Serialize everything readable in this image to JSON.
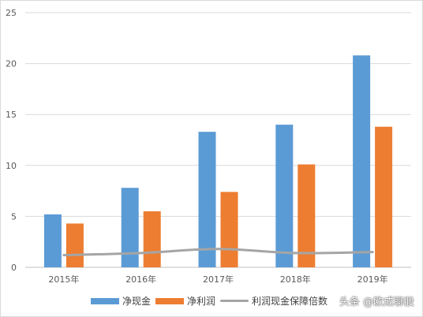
{
  "chart_data": {
    "type": "bar",
    "categories": [
      "2015年",
      "2016年",
      "2017年",
      "2018年",
      "2019年"
    ],
    "series": [
      {
        "name": "净现金",
        "type": "bar",
        "color": "#5B9BD5",
        "values": [
          5.2,
          7.8,
          13.3,
          14.0,
          20.8
        ]
      },
      {
        "name": "净利润",
        "type": "bar",
        "color": "#ED7D31",
        "values": [
          4.3,
          5.5,
          7.4,
          10.1,
          13.8
        ]
      },
      {
        "name": "利润现金保障倍数",
        "type": "line",
        "color": "#A5A5A5",
        "values": [
          1.2,
          1.4,
          1.8,
          1.4,
          1.5
        ]
      }
    ],
    "ylim": [
      0,
      25
    ],
    "yticks": [
      0,
      5,
      10,
      15,
      20,
      25
    ],
    "grid": true,
    "legend_position": "bottom"
  },
  "watermark": "头条 @欧成聊股"
}
